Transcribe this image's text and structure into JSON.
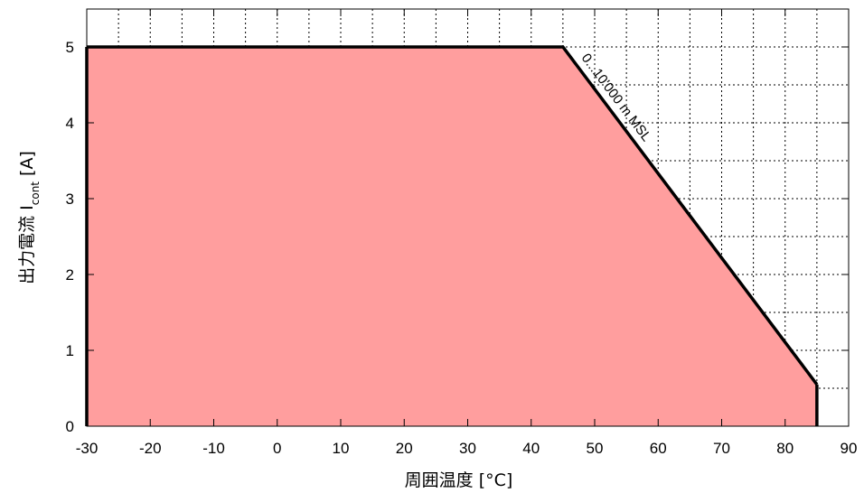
{
  "chart_data": {
    "type": "area",
    "x": [
      -30,
      45,
      85,
      85
    ],
    "y": [
      5,
      5,
      0.55,
      0
    ],
    "series": [
      {
        "name": "0...10'000 m MSL",
        "x": [
          -30,
          45,
          85
        ],
        "y": [
          5,
          5,
          0.55
        ]
      }
    ],
    "fill_color": "#ff9e9e",
    "line_color": "#000000",
    "xlabel": "周囲温度  [°C]",
    "ylabel_main": "出力電流 I",
    "ylabel_sub": "cont",
    "ylabel_tail": " [A]",
    "xlim": [
      -30,
      90
    ],
    "ylim": [
      0,
      5.5
    ],
    "xticks": [
      -30,
      -20,
      -10,
      0,
      10,
      20,
      30,
      40,
      50,
      60,
      70,
      80,
      90
    ],
    "yticks": [
      0,
      1,
      2,
      3,
      4,
      5
    ],
    "grid_x_step": 5,
    "grid_y_step": 0.5,
    "grid": true,
    "annotation": "0...10'000 m MSL"
  }
}
